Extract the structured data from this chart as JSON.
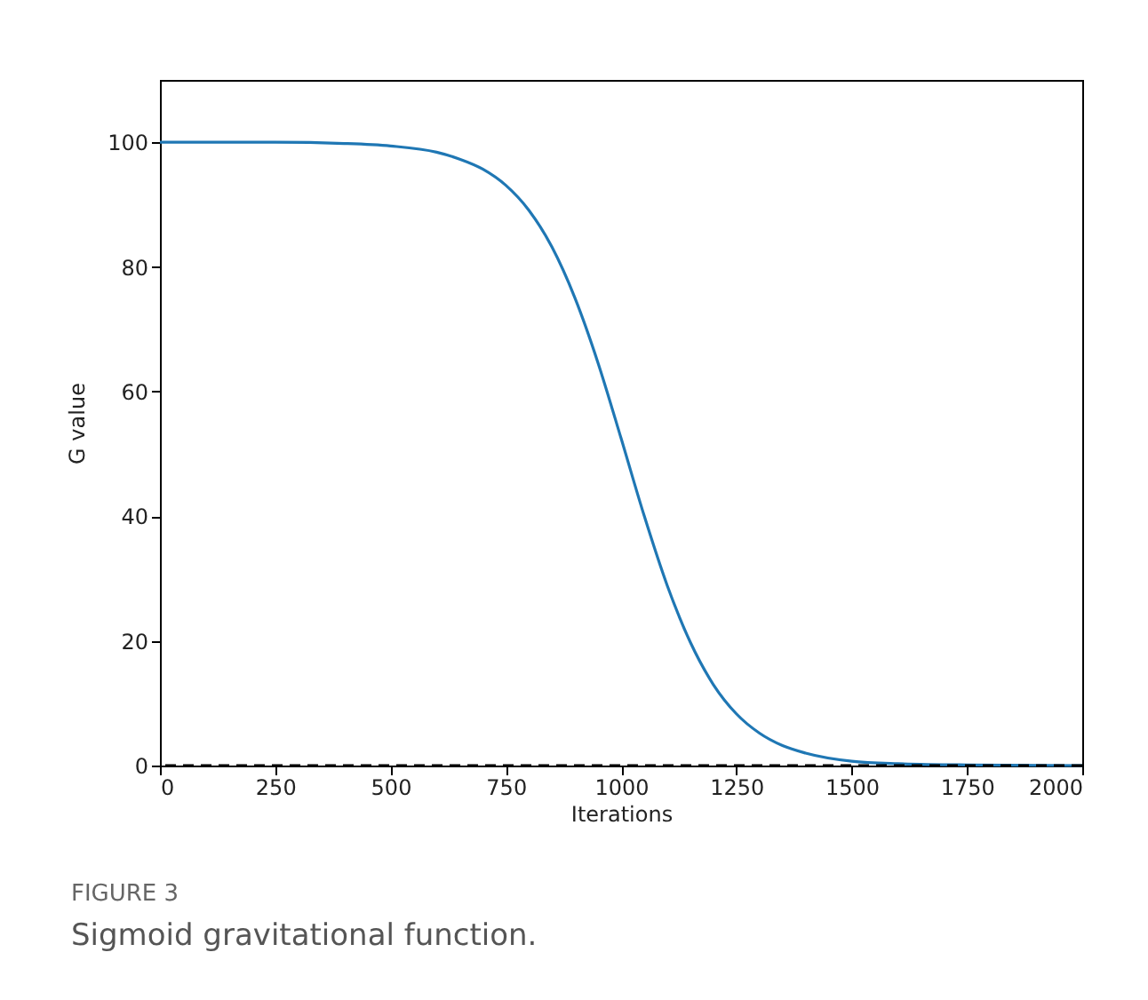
{
  "chart_data": {
    "type": "line",
    "xlabel": "Iterations",
    "ylabel": "G value",
    "x": [
      0,
      250,
      400,
      500,
      600,
      650,
      700,
      750,
      800,
      850,
      900,
      950,
      1000,
      1050,
      1100,
      1150,
      1200,
      1250,
      1300,
      1350,
      1400,
      1500,
      1600,
      1750,
      2000
    ],
    "series": [
      {
        "color": "#1f77b4",
        "values": [
          100,
          100,
          99.8,
          99.4,
          98.4,
          97.3,
          95.7,
          93.1,
          89.1,
          83.2,
          75.0,
          64.6,
          52.5,
          40.1,
          28.9,
          19.8,
          13.0,
          8.3,
          5.2,
          3.2,
          2.0,
          0.7,
          0.3,
          0.1,
          0
        ]
      }
    ],
    "xlim": [
      0,
      2000
    ],
    "xticks": [
      0,
      250,
      500,
      750,
      1000,
      1250,
      1500,
      1750,
      2000
    ],
    "ylim": [
      0,
      110
    ],
    "yticks": [
      0,
      20,
      40,
      60,
      80,
      100
    ],
    "ref_lines": [
      {
        "axis": "y",
        "value": 0,
        "color": "#000000",
        "line_style": "dashed"
      }
    ],
    "grid": false,
    "marker": "none",
    "line_style": "solid",
    "annotations": [
      "FIGURE 3",
      "Sigmoid gravitational function."
    ]
  }
}
